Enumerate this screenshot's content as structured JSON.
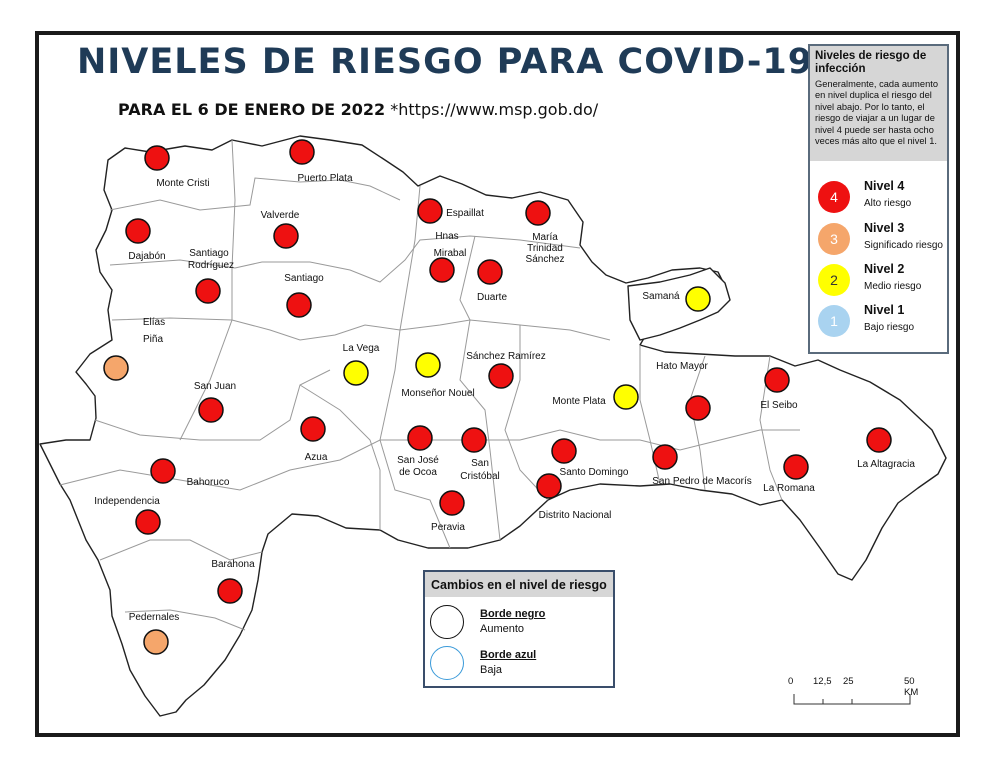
{
  "title": "NIVELES DE RIESGO PARA COVID-19",
  "subtitle_bold": "PARA EL 6 DE ENERO DE 2022",
  "subtitle_source": "*https://www.msp.gob.do/",
  "level_colors": {
    "4": "#ee1111",
    "3": "#f5a66b",
    "2": "#ffff00",
    "1": "#a9d3f0"
  },
  "provinces": [
    {
      "name": "Monte Cristi",
      "level": 4
    },
    {
      "name": "Puerto Plata",
      "level": 4
    },
    {
      "name": "Valverde",
      "level": 4
    },
    {
      "name": "Espaillat",
      "level": 4
    },
    {
      "name": "María Trinidad Sánchez",
      "level": 4
    },
    {
      "name": "Dajabón",
      "level": 4
    },
    {
      "name": "Santiago Rodríguez",
      "level": 4
    },
    {
      "name": "Santiago",
      "level": 4
    },
    {
      "name": "Hnas Mirabal",
      "level": 4
    },
    {
      "name": "Duarte",
      "level": 4
    },
    {
      "name": "Samaná",
      "level": 2
    },
    {
      "name": "Elías Piña",
      "level": 3
    },
    {
      "name": "La Vega",
      "level": 2
    },
    {
      "name": "Monseñor Nouel",
      "level": 2
    },
    {
      "name": "Sánchez Ramírez",
      "level": 4
    },
    {
      "name": "Hato Mayor",
      "level": 4
    },
    {
      "name": "San Juan",
      "level": 4
    },
    {
      "name": "Monte Plata",
      "level": 2
    },
    {
      "name": "El Seibo",
      "level": 4
    },
    {
      "name": "Azua",
      "level": 4
    },
    {
      "name": "San José de Ocoa",
      "level": 4
    },
    {
      "name": "San Cristóbal",
      "level": 4
    },
    {
      "name": "Santo Domingo",
      "level": 4
    },
    {
      "name": "San Pedro de Macorís",
      "level": 4
    },
    {
      "name": "La Altagracia",
      "level": 4
    },
    {
      "name": "Bahoruco",
      "level": 4
    },
    {
      "name": "Distrito Nacional",
      "level": 4
    },
    {
      "name": "La Romana",
      "level": 4
    },
    {
      "name": "Independencia",
      "level": 4
    },
    {
      "name": "Peravia",
      "level": 4
    },
    {
      "name": "Barahona",
      "level": 4
    },
    {
      "name": "Pedernales",
      "level": 3
    }
  ],
  "legend": {
    "title": "Niveles de riesgo de infección",
    "description": "Generalmente, cada aumento en nivel duplica el riesgo del nivel abajo. Por lo tanto, el riesgo de viajar a un lugar de nivel 4 puede ser hasta ocho veces más alto que el nivel 1.",
    "levels": [
      {
        "num": "4",
        "name": "Nivel 4",
        "desc": "Alto riesgo",
        "color": "#ee1111",
        "num_color": "#ffffff"
      },
      {
        "num": "3",
        "name": "Nivel 3",
        "desc": "Significado riesgo",
        "color": "#f5a66b",
        "num_color": "#ffffff"
      },
      {
        "num": "2",
        "name": "Nivel 2",
        "desc": "Medio riesgo",
        "color": "#ffff00",
        "num_color": "#333333"
      },
      {
        "num": "1",
        "name": "Nivel 1",
        "desc": "Bajo riesgo",
        "color": "#a9d3f0",
        "num_color": "#ffffff"
      }
    ]
  },
  "changes": {
    "title": "Cambios en el nivel de riesgo",
    "items": [
      {
        "name": "Borde negro",
        "desc": "Aumento",
        "border": "#111111"
      },
      {
        "name": "Borde azul",
        "desc": "Baja",
        "border": "#3a9ad9"
      }
    ]
  },
  "scale": {
    "ticks": [
      "0",
      "12,5",
      "25",
      "50 KM"
    ]
  }
}
